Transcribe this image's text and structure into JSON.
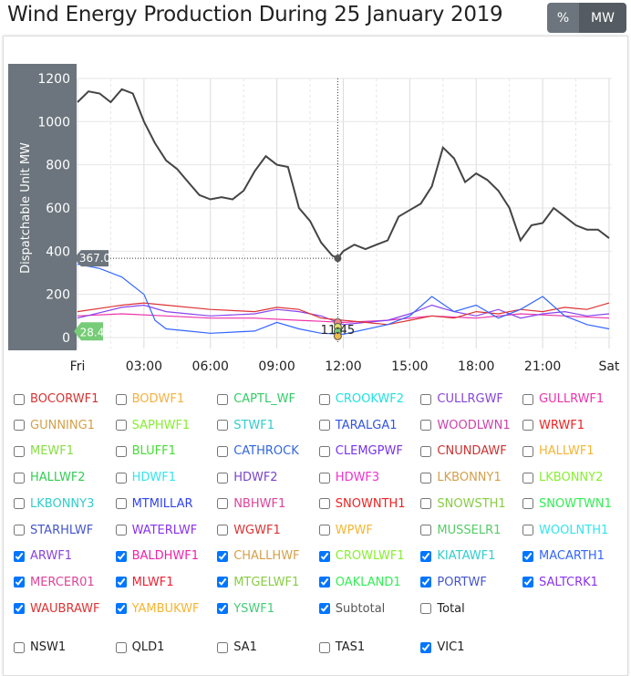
{
  "title": "Wind Energy Production During 25 January 2019",
  "toggle": {
    "percent": "%",
    "mw": "MW",
    "active": "MW"
  },
  "chart_data": {
    "type": "line",
    "ylabel": "Dispatchable Unit MW",
    "ylim": [
      -50,
      1250
    ],
    "yticks": [
      "0",
      "200",
      "400",
      "600",
      "800",
      "1000",
      "1200"
    ],
    "xticks": [
      "Fri",
      "03:00",
      "06:00",
      "09:00",
      "12:00",
      "15:00",
      "18:00",
      "21:00",
      "Sat"
    ],
    "grid": true,
    "series": [
      {
        "name": "Subtotal",
        "color": "#444444",
        "x": [
          0,
          0.5,
          1,
          1.5,
          2,
          2.5,
          3,
          3.5,
          4,
          4.5,
          5,
          5.5,
          6,
          6.5,
          7,
          7.5,
          8,
          8.5,
          9,
          9.5,
          10,
          10.5,
          11,
          11.5,
          11.75,
          12,
          12.5,
          13,
          13.5,
          14,
          14.5,
          15,
          15.5,
          16,
          16.5,
          17,
          17.5,
          18,
          18.5,
          19,
          19.5,
          20,
          20.5,
          21,
          21.5,
          22,
          22.5,
          23,
          23.5,
          24
        ],
        "y": [
          1090,
          1140,
          1130,
          1090,
          1150,
          1130,
          1000,
          900,
          820,
          780,
          720,
          660,
          640,
          650,
          640,
          680,
          770,
          840,
          800,
          790,
          600,
          540,
          440,
          380,
          367,
          400,
          430,
          410,
          430,
          450,
          560,
          590,
          620,
          700,
          880,
          830,
          720,
          760,
          730,
          680,
          600,
          450,
          520,
          530,
          600,
          560,
          520,
          500,
          500,
          460
        ]
      },
      {
        "name": "MACARTH1",
        "color": "#3366ff",
        "x": [
          0,
          1,
          2,
          3,
          3.5,
          4,
          5,
          6,
          8,
          9,
          10,
          11,
          12,
          14,
          15,
          16,
          17,
          18,
          19,
          20,
          21,
          22,
          23,
          24
        ],
        "y": [
          340,
          320,
          280,
          200,
          80,
          40,
          30,
          20,
          30,
          70,
          40,
          20,
          15,
          60,
          100,
          190,
          120,
          150,
          90,
          130,
          190,
          100,
          60,
          40
        ]
      },
      {
        "name": "WAUBRAWF",
        "color": "#dd3333",
        "x": [
          0,
          2,
          3,
          4,
          6,
          8,
          9,
          10,
          11,
          12,
          13,
          14,
          15,
          16,
          17,
          18,
          19,
          20,
          21,
          22,
          23,
          24
        ],
        "y": [
          120,
          150,
          160,
          150,
          130,
          120,
          140,
          130,
          90,
          80,
          70,
          60,
          80,
          100,
          90,
          120,
          110,
          130,
          120,
          140,
          130,
          160
        ]
      },
      {
        "name": "SALTCRK1",
        "color": "#8844ee",
        "x": [
          0,
          2,
          3,
          4,
          5,
          6,
          8,
          9,
          10,
          11,
          12,
          13,
          14,
          15,
          16,
          17,
          18,
          19,
          20,
          21,
          22,
          23,
          24
        ],
        "y": [
          90,
          140,
          150,
          120,
          110,
          100,
          110,
          130,
          120,
          100,
          60,
          70,
          80,
          110,
          150,
          120,
          100,
          130,
          90,
          110,
          120,
          100,
          110
        ]
      },
      {
        "name": "BALDHWF1",
        "color": "#ee33aa",
        "x": [
          0,
          2,
          4,
          6,
          8,
          10,
          11,
          12,
          14,
          16,
          18,
          20,
          22,
          24
        ],
        "y": [
          100,
          110,
          100,
          90,
          90,
          80,
          75,
          70,
          80,
          100,
          90,
          110,
          100,
          90
        ]
      }
    ],
    "tooltip": {
      "time": "11:45",
      "subtotal": "367.0",
      "unit_value": "28.4"
    }
  },
  "legend": [
    {
      "label": "BOCORWF1",
      "color": "#d63333",
      "checked": false
    },
    {
      "label": "BODWF1",
      "color": "#f5b041",
      "checked": false
    },
    {
      "label": "CAPTL_WF",
      "color": "#33cc66",
      "checked": false
    },
    {
      "label": "CROOKWF2",
      "color": "#22e0e0",
      "checked": false
    },
    {
      "label": "CULLRGWF",
      "color": "#8844dd",
      "checked": false
    },
    {
      "label": "GULLRWF1",
      "color": "#ee33aa",
      "checked": false
    },
    {
      "label": "GUNNING1",
      "color": "#d4a04a",
      "checked": false
    },
    {
      "label": "SAPHWF1",
      "color": "#88ee33",
      "checked": false
    },
    {
      "label": "STWF1",
      "color": "#33cccc",
      "checked": false
    },
    {
      "label": "TARALGA1",
      "color": "#3355dd",
      "checked": false
    },
    {
      "label": "WOODLWN1",
      "color": "#cc44aa",
      "checked": false
    },
    {
      "label": "WRWF1",
      "color": "#ee2222",
      "checked": false
    },
    {
      "label": "MEWF1",
      "color": "#88dd44",
      "checked": false
    },
    {
      "label": "BLUFF1",
      "color": "#44dd33",
      "checked": false
    },
    {
      "label": "CATHROCK",
      "color": "#3366dd",
      "checked": false
    },
    {
      "label": "CLEMGPWF",
      "color": "#7733ee",
      "checked": false
    },
    {
      "label": "CNUNDAWF",
      "color": "#cc3333",
      "checked": false
    },
    {
      "label": "HALLWF1",
      "color": "#f5b533",
      "checked": false
    },
    {
      "label": "HALLWF2",
      "color": "#33cc55",
      "checked": false
    },
    {
      "label": "HDWF1",
      "color": "#33e5ee",
      "checked": false
    },
    {
      "label": "HDWF2",
      "color": "#7744cc",
      "checked": false
    },
    {
      "label": "HDWF3",
      "color": "#ee33cc",
      "checked": false
    },
    {
      "label": "LKBONNY1",
      "color": "#d4a04a",
      "checked": false
    },
    {
      "label": "LKBONNY2",
      "color": "#88ee33",
      "checked": false
    },
    {
      "label": "LKBONNY3",
      "color": "#33cccc",
      "checked": false
    },
    {
      "label": "MTMILLAR",
      "color": "#3344ee",
      "checked": false
    },
    {
      "label": "NBHWF1",
      "color": "#dd4499",
      "checked": false
    },
    {
      "label": "SNOWNTH1",
      "color": "#ee2222",
      "checked": false
    },
    {
      "label": "SNOWSTH1",
      "color": "#88cc44",
      "checked": false
    },
    {
      "label": "SNOWTWN1",
      "color": "#33ee55",
      "checked": false
    },
    {
      "label": "STARHLWF",
      "color": "#4455cc",
      "checked": false
    },
    {
      "label": "WATERLWF",
      "color": "#8833ee",
      "checked": false
    },
    {
      "label": "WGWF1",
      "color": "#dd3333",
      "checked": false
    },
    {
      "label": "WPWF",
      "color": "#f5b533",
      "checked": false
    },
    {
      "label": "MUSSELR1",
      "color": "#55cc66",
      "checked": false
    },
    {
      "label": "WOOLNTH1",
      "color": "#33e5ee",
      "checked": false
    },
    {
      "label": "ARWF1",
      "color": "#8844dd",
      "checked": true
    },
    {
      "label": "BALDHWF1",
      "color": "#ee22aa",
      "checked": true
    },
    {
      "label": "CHALLHWF",
      "color": "#d4a04a",
      "checked": true
    },
    {
      "label": "CROWLWF1",
      "color": "#88ee33",
      "checked": true
    },
    {
      "label": "KIATAWF1",
      "color": "#33cccc",
      "checked": true
    },
    {
      "label": "MACARTH1",
      "color": "#3366ff",
      "checked": true
    },
    {
      "label": "MERCER01",
      "color": "#dd4499",
      "checked": true
    },
    {
      "label": "MLWF1",
      "color": "#ee2233",
      "checked": true
    },
    {
      "label": "MTGELWF1",
      "color": "#88cc44",
      "checked": true
    },
    {
      "label": "OAKLAND1",
      "color": "#33ee55",
      "checked": true
    },
    {
      "label": "PORTWF",
      "color": "#4455cc",
      "checked": true
    },
    {
      "label": "SALTCRK1",
      "color": "#8833ee",
      "checked": true
    },
    {
      "label": "WAUBRAWF",
      "color": "#dd3333",
      "checked": true
    },
    {
      "label": "YAMBUKWF",
      "color": "#f5b533",
      "checked": true
    },
    {
      "label": "YSWF1",
      "color": "#44cc77",
      "checked": true
    },
    {
      "label": "Subtotal",
      "color": "#555555",
      "checked": true
    },
    {
      "label": "Total",
      "color": "#222222",
      "checked": false
    }
  ],
  "regions": [
    {
      "label": "NSW1",
      "checked": false
    },
    {
      "label": "QLD1",
      "checked": false
    },
    {
      "label": "SA1",
      "checked": false
    },
    {
      "label": "TAS1",
      "checked": false
    },
    {
      "label": "VIC1",
      "checked": true
    }
  ]
}
